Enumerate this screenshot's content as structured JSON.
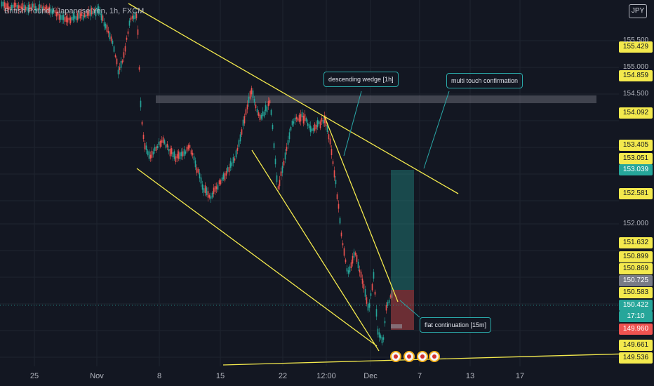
{
  "header": {
    "title": "British Pound / Japanese Yen, 1h, FXCM",
    "currency_button": "JPY"
  },
  "colors": {
    "background": "#131722",
    "trendline": "#f3e94d",
    "bull": "#26a69a",
    "bear": "#ef5350",
    "callout_border": "#2aa8a8"
  },
  "price_axis": {
    "plain_labels": [
      {
        "text": "155.500"
      },
      {
        "text": "155.000"
      },
      {
        "text": "154.500"
      },
      {
        "text": "152.000"
      },
      {
        "text": "154.092"
      }
    ],
    "labels": [
      {
        "text": "155.429",
        "style": "yellow"
      },
      {
        "text": "154.859",
        "style": "yellow"
      },
      {
        "text": "154.092",
        "style": "yellow"
      },
      {
        "text": "153.405",
        "style": "yellow"
      },
      {
        "text": "153.051",
        "style": "yellow"
      },
      {
        "text": "153.039",
        "style": "teal"
      },
      {
        "text": "152.581",
        "style": "yellow"
      },
      {
        "text": "151.632",
        "style": "yellow"
      },
      {
        "text": "150.899",
        "style": "yellow"
      },
      {
        "text": "150.869",
        "style": "yellow"
      },
      {
        "text": "150.725",
        "style": "gray"
      },
      {
        "text": "150.583",
        "style": "yellow"
      },
      {
        "text": "150.422",
        "style": "teal"
      },
      {
        "text": "17:10",
        "style": "teal"
      },
      {
        "text": "149.960",
        "style": "red"
      },
      {
        "text": "149.661",
        "style": "yellow"
      },
      {
        "text": "149.536",
        "style": "yellow"
      }
    ]
  },
  "time_axis": [
    "25",
    "Nov",
    "8",
    "15",
    "22",
    "12:00",
    "Dec",
    "7",
    "13",
    "17"
  ],
  "annotations": {
    "descending_wedge": "descending wedge [1h]",
    "multi_touch": "multi touch confirmation",
    "flat_continuation": "flat continuation [15m]"
  },
  "current_price": "150.422"
}
